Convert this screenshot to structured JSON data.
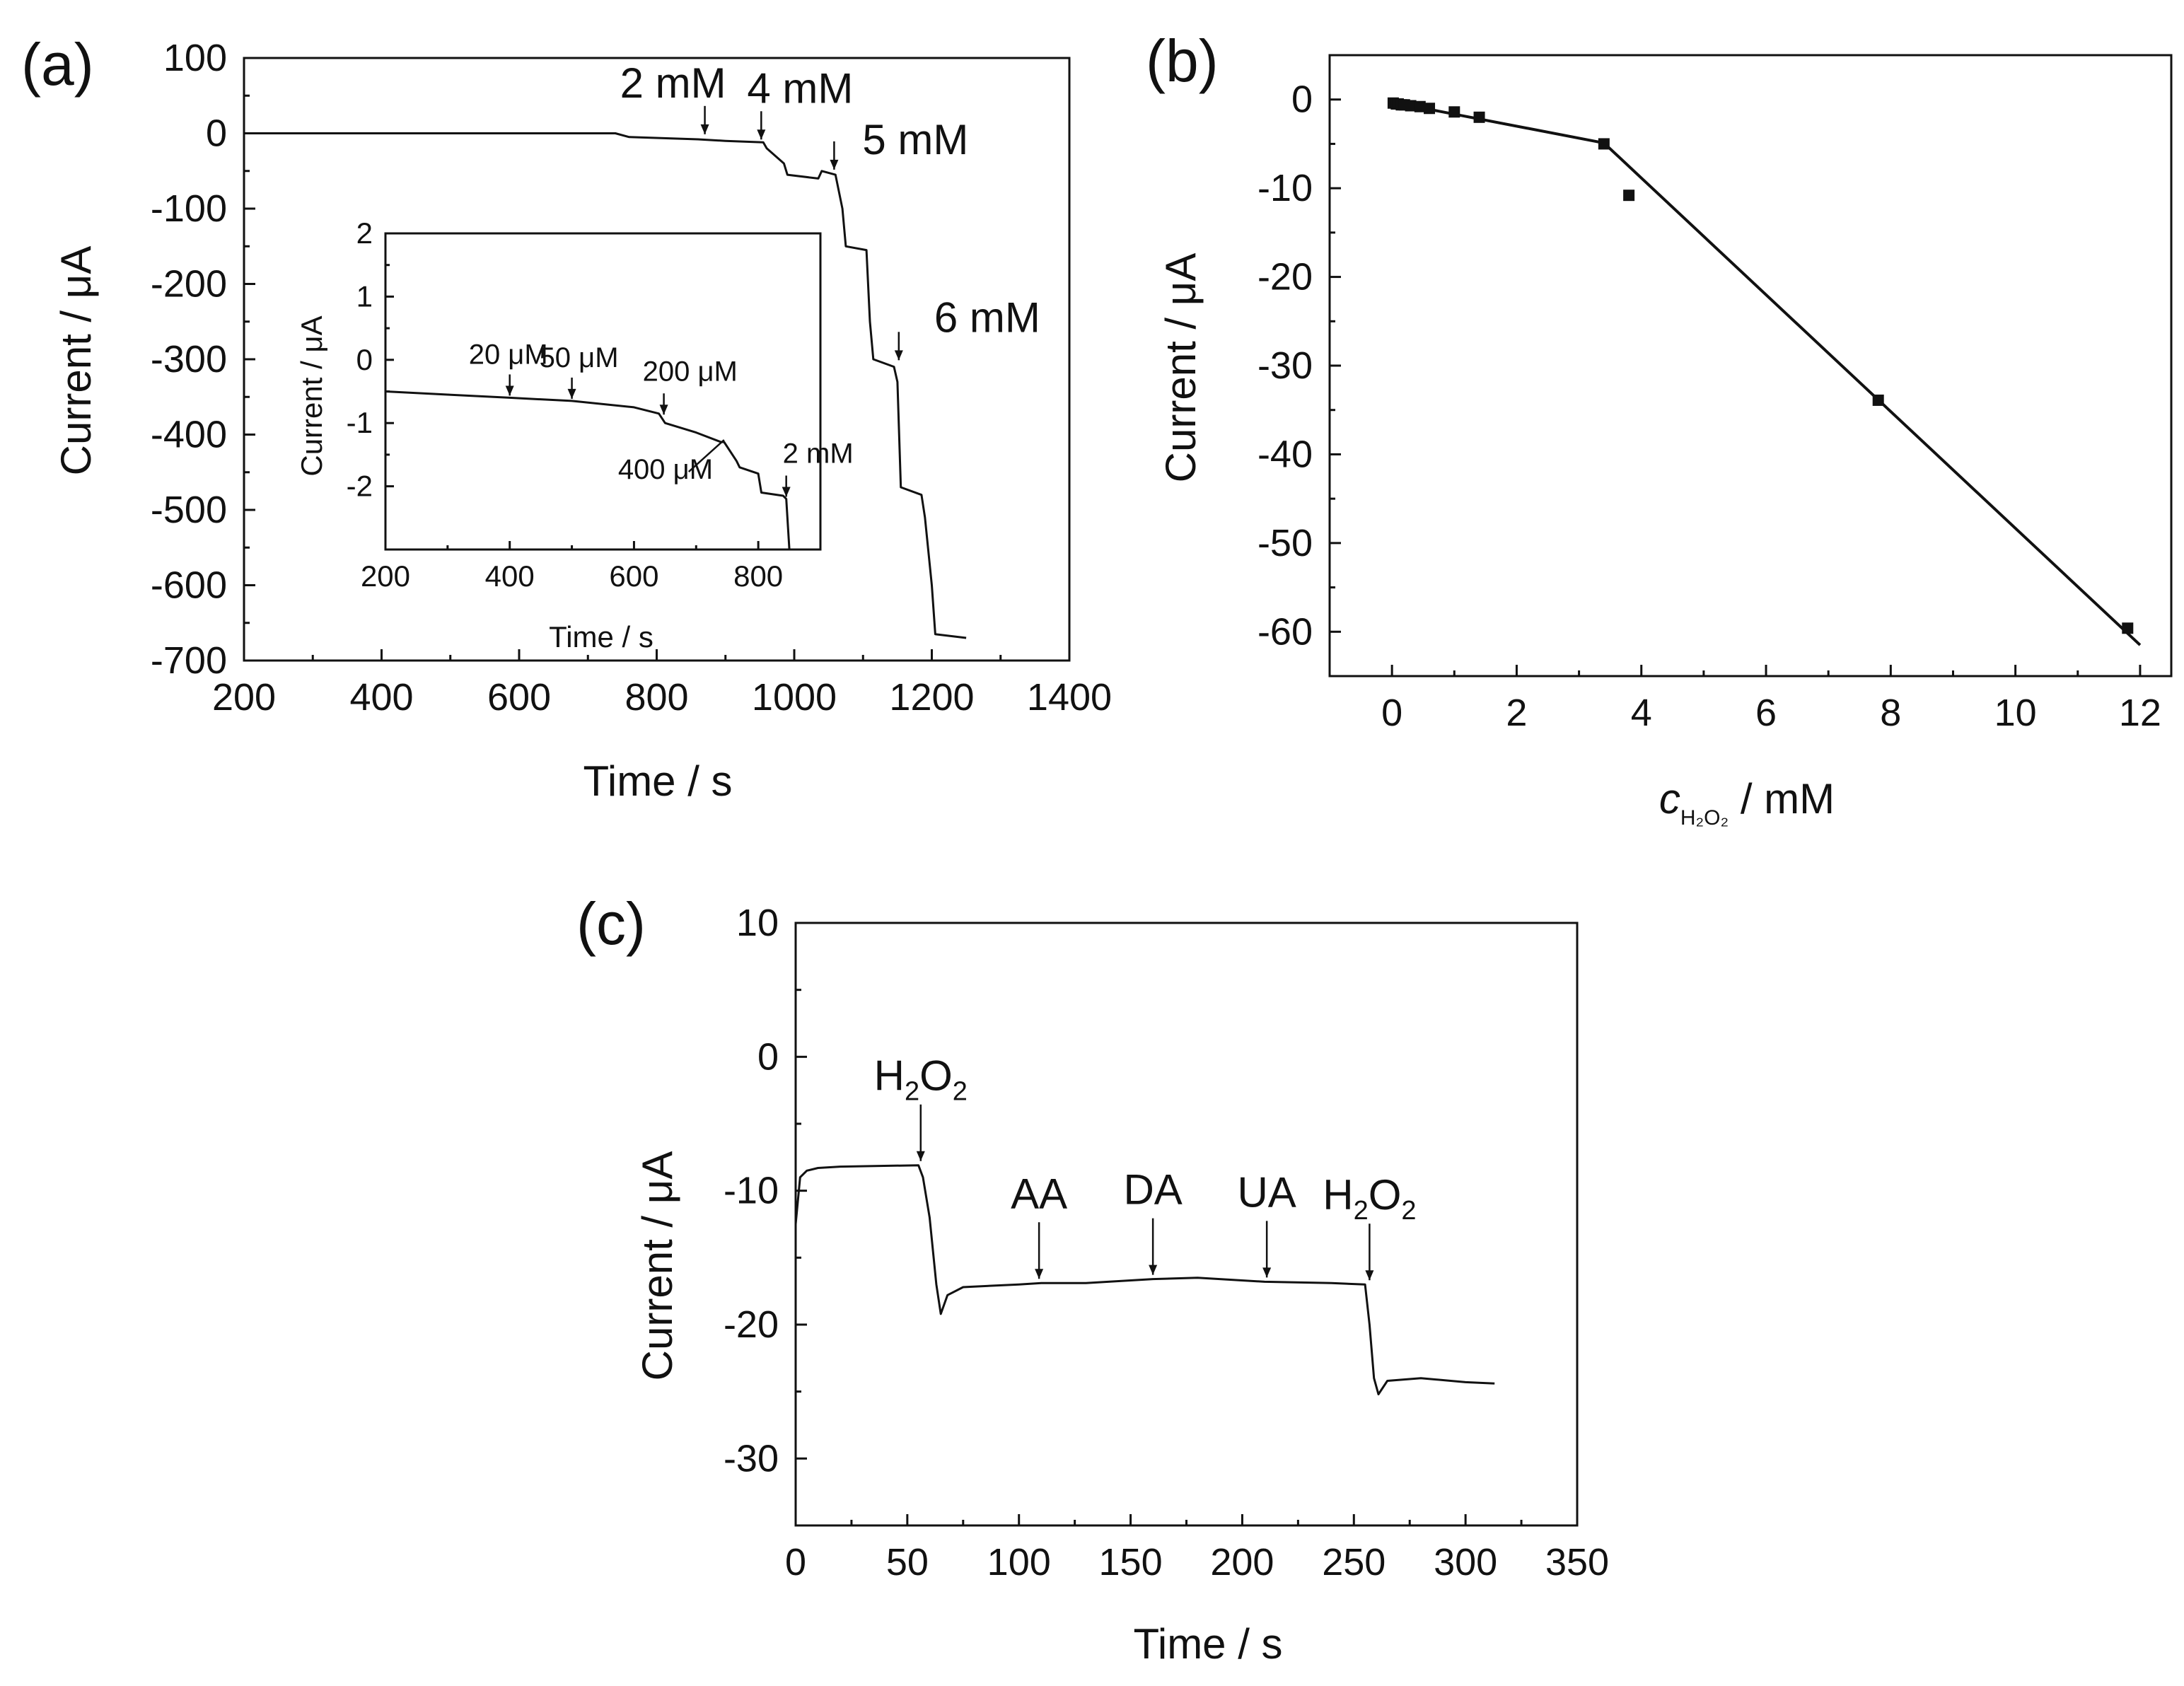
{
  "chart_data": [
    {
      "panel": "(a)",
      "type": "line",
      "xlabel": "Time / s",
      "ylabel": "Current / μA",
      "xlim": [
        200,
        1400
      ],
      "ylim": [
        -700,
        100
      ],
      "xticks": [
        200,
        400,
        600,
        800,
        1000,
        1200,
        1400
      ],
      "yticks": [
        100,
        0,
        -100,
        -200,
        -300,
        -400,
        -500,
        -600,
        -700
      ],
      "series": [
        {
          "name": "amperometric response",
          "x": [
            200,
            740,
            760,
            860,
            900,
            955,
            960,
            985,
            990,
            1035,
            1040,
            1060,
            1070,
            1075,
            1105,
            1110,
            1115,
            1145,
            1150,
            1155,
            1185,
            1190,
            1200,
            1205,
            1250
          ],
          "y": [
            0,
            0,
            -5,
            -8,
            -10,
            -12,
            -20,
            -40,
            -55,
            -60,
            -50,
            -55,
            -100,
            -150,
            -155,
            -250,
            -300,
            -310,
            -330,
            -470,
            -480,
            -510,
            -600,
            -665,
            -670
          ]
        }
      ],
      "annotations": [
        {
          "text": "2 mM",
          "x": 870,
          "y": -5
        },
        {
          "text": "4 mM",
          "x": 952,
          "y": -12
        },
        {
          "text": "5 mM",
          "x": 1058,
          "y": -52
        },
        {
          "text": "6 mM",
          "x": 1152,
          "y": -305
        }
      ],
      "inset": {
        "xlabel": "Time / s",
        "ylabel": "Current / μA",
        "xlim": [
          200,
          900
        ],
        "ylim": [
          -3,
          2
        ],
        "xticks": [
          200,
          400,
          600,
          800
        ],
        "yticks": [
          2,
          1,
          0,
          -1,
          -2
        ],
        "series": [
          {
            "name": "low concentration response",
            "x": [
              200,
              300,
              400,
              500,
              600,
              640,
              650,
              700,
              740,
              745,
              765,
              770,
              800,
              805,
              840,
              845,
              850
            ],
            "y": [
              -0.5,
              -0.55,
              -0.6,
              -0.65,
              -0.75,
              -0.85,
              -1.0,
              -1.15,
              -1.3,
              -1.3,
              -1.6,
              -1.7,
              -1.8,
              -2.1,
              -2.15,
              -2.2,
              -3.0
            ]
          }
        ],
        "annotations": [
          {
            "text": "20 μM",
            "x": 400,
            "y": -0.6
          },
          {
            "text": "50 μM",
            "x": 500,
            "y": -0.65
          },
          {
            "text": "200 μM",
            "x": 648,
            "y": -0.9
          },
          {
            "text": "400 μM",
            "x": 745,
            "y": -1.3
          },
          {
            "text": "2 mM",
            "x": 845,
            "y": -2.2
          }
        ]
      }
    },
    {
      "panel": "(b)",
      "type": "scatter",
      "xlabel_italic": "c",
      "xlabel_sub": "H₂O₂",
      "xlabel_unit": " /  mM",
      "ylabel": "Current / μA",
      "xlim": [
        -1,
        12.5
      ],
      "ylim": [
        -65,
        5
      ],
      "xticks": [
        0,
        2,
        4,
        6,
        8,
        10,
        12
      ],
      "yticks": [
        0,
        -10,
        -20,
        -30,
        -40,
        -50,
        -60
      ],
      "points_x": [
        0.02,
        0.07,
        0.1,
        0.15,
        0.2,
        0.3,
        0.45,
        0.6,
        1.0,
        1.4,
        3.4,
        3.8,
        7.8,
        11.8
      ],
      "points_y": [
        -0.4,
        -0.5,
        -0.5,
        -0.6,
        -0.6,
        -0.7,
        -0.8,
        -1.0,
        -1.4,
        -2.0,
        -5.0,
        -10.8,
        -33.9,
        -59.6
      ],
      "fit_lines": [
        {
          "x": [
            0,
            3.4
          ],
          "y": [
            -0.3,
            -4.9
          ]
        },
        {
          "x": [
            3.4,
            12
          ],
          "y": [
            -4.9,
            -61.5
          ]
        }
      ]
    },
    {
      "panel": "(c)",
      "type": "line",
      "xlabel": "Time / s",
      "ylabel": "Current / μA",
      "xlim": [
        0,
        350
      ],
      "ylim": [
        -35,
        10
      ],
      "xticks": [
        0,
        50,
        100,
        150,
        200,
        250,
        300,
        350
      ],
      "yticks": [
        10,
        0,
        -10,
        -20,
        -30
      ],
      "series": [
        {
          "name": "interference test",
          "x": [
            0,
            2,
            5,
            10,
            20,
            55,
            57,
            60,
            63,
            65,
            68,
            75,
            100,
            110,
            130,
            160,
            180,
            210,
            240,
            255,
            257,
            259,
            261,
            265,
            280,
            300,
            313
          ],
          "y": [
            -12.5,
            -9,
            -8.5,
            -8.3,
            -8.2,
            -8.1,
            -9,
            -12,
            -17,
            -19.2,
            -17.8,
            -17.2,
            -17,
            -16.9,
            -16.9,
            -16.6,
            -16.5,
            -16.8,
            -16.9,
            -17,
            -20,
            -24,
            -25.2,
            -24.2,
            -24.0,
            -24.3,
            -24.4
          ]
        }
      ],
      "annotations": [
        {
          "text_main": "H",
          "sub1": "2",
          "mid": "O",
          "sub2": "2",
          "x": 56,
          "y": -8.1
        },
        {
          "text": "AA",
          "x": 109,
          "y": -16.9
        },
        {
          "text": "DA",
          "x": 160,
          "y": -16.6
        },
        {
          "text": "UA",
          "x": 211,
          "y": -16.8
        },
        {
          "text_main": "H",
          "sub1": "2",
          "mid": "O",
          "sub2": "2",
          "x": 257,
          "y": -17
        }
      ]
    }
  ]
}
